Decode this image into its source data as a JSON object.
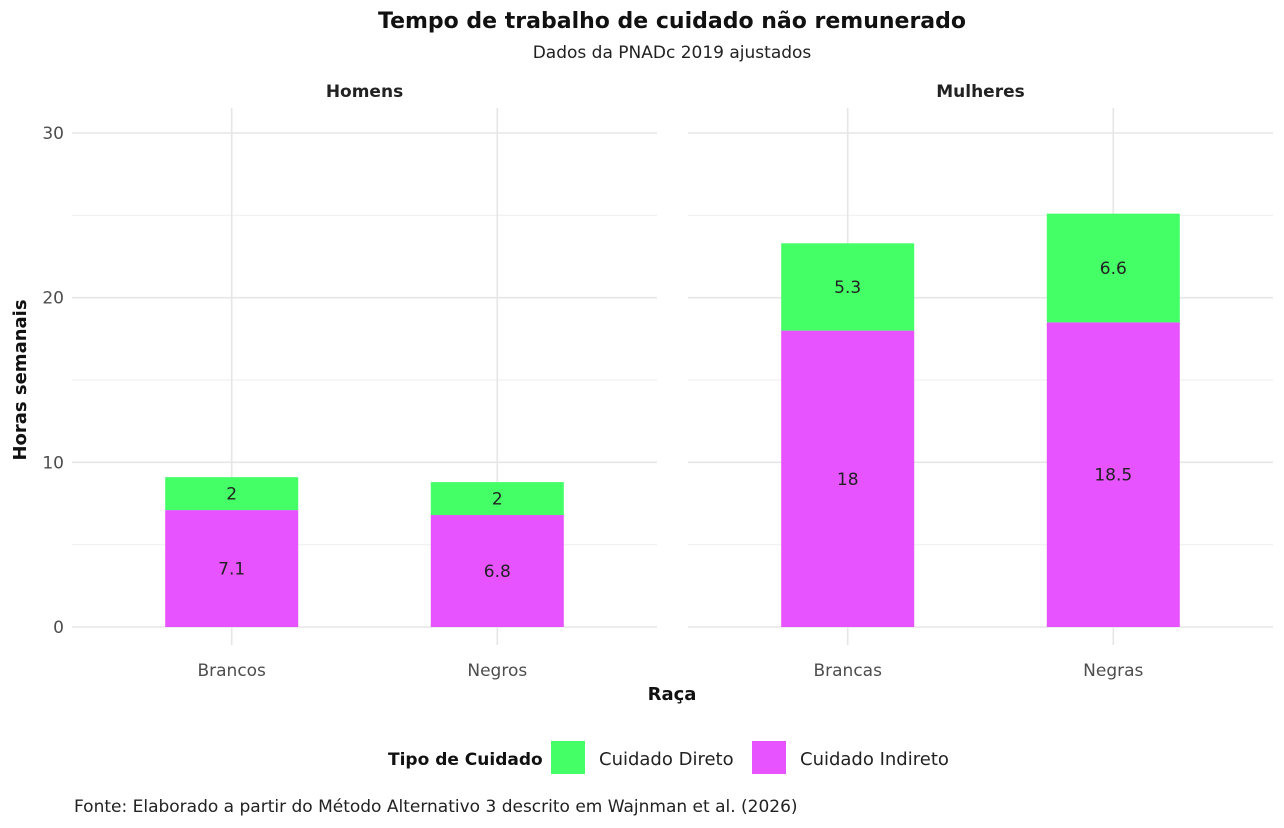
{
  "chart_data": {
    "type": "bar",
    "stacked": true,
    "title": "Tempo de trabalho de cuidado não remunerado",
    "subtitle": "Dados da PNADc 2019 ajustados",
    "xlabel": "Raça",
    "ylabel": "Horas semanais",
    "ylim": [
      0,
      30
    ],
    "yticks": [
      "0",
      "10",
      "20",
      "30"
    ],
    "grid": true,
    "legend": {
      "title": "Tipo de Cuidado",
      "position": "bottom",
      "items": [
        {
          "label": "Cuidado Direto",
          "color": "#44FF66"
        },
        {
          "label": "Cuidado Indireto",
          "color": "#E754FF"
        }
      ]
    },
    "panels": [
      {
        "name": "Homens",
        "categories": [
          "Brancos",
          "Negros"
        ],
        "series": [
          {
            "name": "Cuidado Indireto",
            "color": "#E754FF",
            "values": [
              7.1,
              6.8
            ],
            "labels": [
              "7.1",
              "6.8"
            ]
          },
          {
            "name": "Cuidado Direto",
            "color": "#44FF66",
            "values": [
              2,
              2
            ],
            "labels": [
              "2",
              "2"
            ]
          }
        ]
      },
      {
        "name": "Mulheres",
        "categories": [
          "Brancas",
          "Negras"
        ],
        "series": [
          {
            "name": "Cuidado Indireto",
            "color": "#E754FF",
            "values": [
              18,
              18.5
            ],
            "labels": [
              "18",
              "18.5"
            ]
          },
          {
            "name": "Cuidado Direto",
            "color": "#44FF66",
            "values": [
              5.3,
              6.6
            ],
            "labels": [
              "5.3",
              "6.6"
            ]
          }
        ]
      }
    ],
    "caption": "Fonte: Elaborado a partir do Método Alternativo 3 descrito em Wajnman et al. (2026)"
  }
}
